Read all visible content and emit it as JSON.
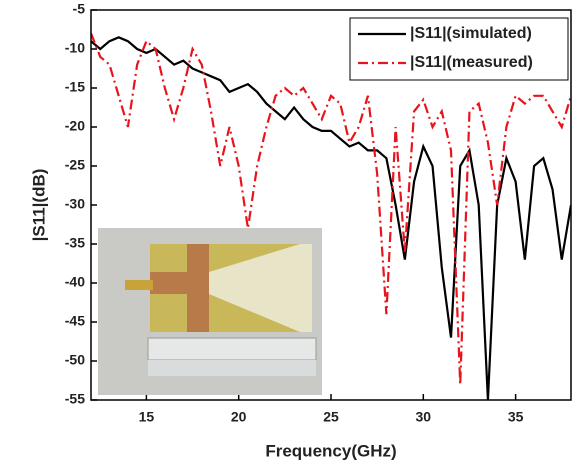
{
  "chart_data": {
    "type": "line",
    "x_label": "Frequency(GHz)",
    "y_label": "|S11|(dB)",
    "x": [
      12,
      12.5,
      13,
      13.5,
      14,
      14.5,
      15,
      15.5,
      16,
      16.5,
      17,
      17.5,
      18,
      18.5,
      19,
      19.5,
      20,
      20.5,
      21,
      21.5,
      22,
      22.5,
      23,
      23.5,
      24,
      24.5,
      25,
      25.5,
      26,
      26.5,
      27,
      27.5,
      28,
      28.5,
      29,
      29.5,
      30,
      30.5,
      31,
      31.5,
      32,
      32.5,
      33,
      33.5,
      34,
      34.5,
      35,
      35.5,
      36,
      36.5,
      37,
      37.5,
      38
    ],
    "series": [
      {
        "name": "|S11|(simulated)",
        "color": "#000000",
        "dash": "solid",
        "values": [
          -9,
          -10,
          -9,
          -8.5,
          -9,
          -10,
          -10.5,
          -10,
          -11,
          -12,
          -11.5,
          -12.5,
          -13,
          -13.5,
          -14,
          -15.5,
          -15,
          -14.5,
          -15.5,
          -17,
          -18,
          -19,
          -17.5,
          -19,
          -20,
          -20.5,
          -20.5,
          -21.5,
          -22.5,
          -22,
          -23,
          -23,
          -24,
          -30,
          -37,
          -27,
          -22.5,
          -25,
          -38,
          -47,
          -25,
          -23,
          -30,
          -55,
          -30,
          -24,
          -27,
          -37,
          -25,
          -24,
          -28,
          -37,
          -30
        ]
      },
      {
        "name": "|S11|(measured)",
        "color": "#e8141b",
        "dash": "dashdot",
        "values": [
          -8,
          -11,
          -12,
          -16,
          -20,
          -12,
          -9,
          -10,
          -15,
          -19,
          -15,
          -10,
          -12,
          -18,
          -25,
          -20,
          -25,
          -33,
          -25,
          -20,
          -16,
          -15,
          -16,
          -15,
          -17,
          -19,
          -16,
          -17,
          -22,
          -20,
          -16,
          -26,
          -44,
          -20,
          -36,
          -18,
          -16.5,
          -20,
          -18,
          -23,
          -53,
          -18,
          -17,
          -22,
          -30,
          -20,
          -16,
          -17,
          -16,
          -16,
          -18,
          -20,
          -16
        ]
      }
    ],
    "xlim": [
      12,
      38
    ],
    "ylim": [
      -55,
      -5
    ],
    "xticks": [
      15,
      20,
      25,
      30,
      35
    ],
    "yticks": [
      -5,
      -10,
      -15,
      -20,
      -25,
      -30,
      -35,
      -40,
      -45,
      -50,
      -55
    ],
    "legend": "upper right"
  }
}
